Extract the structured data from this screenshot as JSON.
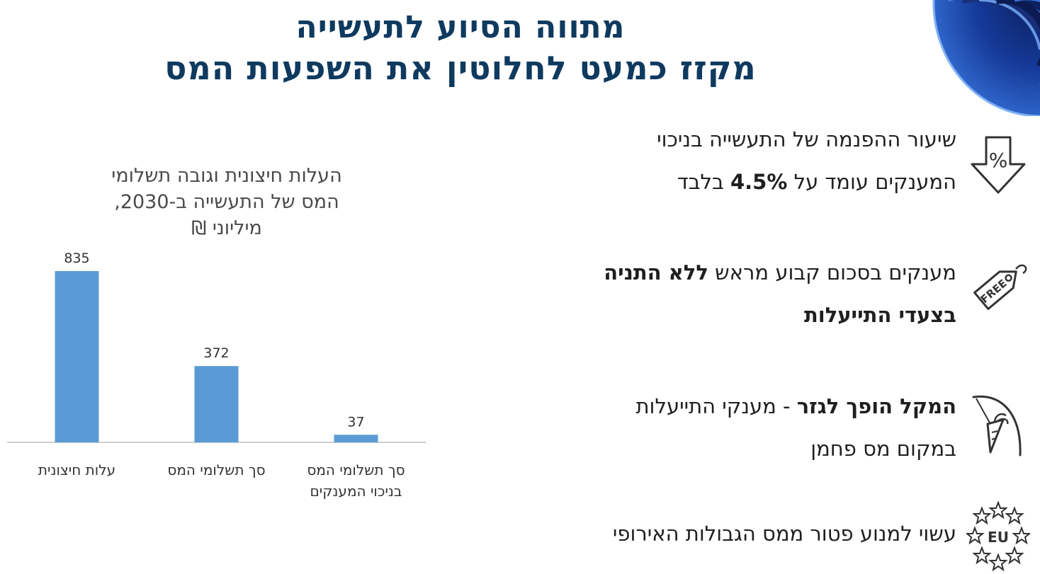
{
  "header": {
    "title_line1": "מתווה הסיוע לתעשייה",
    "title_line2": "מקזז כמעט לחלוטין את השפעות המס"
  },
  "bullets": [
    {
      "icon": "percent-down-arrow-icon",
      "line1": "שיעור ההפנמה של התעשייה בניכוי",
      "line2_prefix": "המענקים עומד על ",
      "line2_bold": "4.5%",
      "line2_suffix": " בלבד"
    },
    {
      "icon": "free-tag-icon",
      "line1_prefix": "מענקים בסכום קבוע מראש ",
      "line1_bold": "ללא התניה",
      "line2_bold": "בצעדי התייעלות"
    },
    {
      "icon": "carrot-stick-icon",
      "line1_bold": "המקל הופך לגזר",
      "line1_suffix": " - מענקי התייעלות",
      "line2": "במקום מס פחמן"
    },
    {
      "icon": "eu-stars-icon",
      "line1": "עשוי למנוע פטור ממס הגבולות האירופי"
    }
  ],
  "chart_data": {
    "type": "bar",
    "title_lines": [
      "העלות חיצונית וגובה תשלומי",
      "המס של התעשייה ב-2030,",
      "מיליוני ₪"
    ],
    "categories": [
      "עלות חיצונית",
      "סך תשלומי המס",
      "סך תשלומי המס בניכוי המענקים"
    ],
    "category_label_lines": [
      [
        "עלות חיצונית"
      ],
      [
        "סך תשלומי המס"
      ],
      [
        "סך תשלומי המס",
        "בניכוי המענקים"
      ]
    ],
    "values": [
      835,
      372,
      37
    ],
    "data_labels": [
      "835",
      "372",
      "37"
    ],
    "ylim": [
      0,
      900
    ],
    "grid": false,
    "bar_color": "#5b9bd5"
  },
  "colors": {
    "title": "#0f3a5f",
    "bar": "#5b9bd5"
  }
}
